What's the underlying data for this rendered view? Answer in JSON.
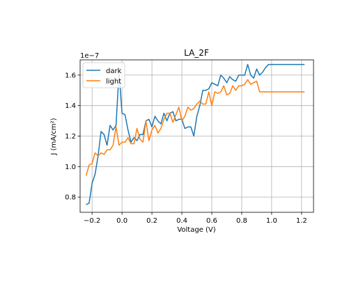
{
  "chart_data": {
    "type": "line",
    "title": "LA_2F",
    "xlabel": "Voltage (V)",
    "ylabel": "J (mA/cm²)",
    "y_offset_label": "1e−7",
    "xlim": [
      -0.28,
      1.28
    ],
    "ylim": [
      0.7,
      1.7
    ],
    "grid": true,
    "legend_position": "top-left",
    "x_ticks": [
      -0.2,
      0.0,
      0.2,
      0.4,
      0.6,
      0.8,
      1.0,
      1.2
    ],
    "x_tick_labels": [
      "−0.2",
      "0.0",
      "0.2",
      "0.4",
      "0.6",
      "0.8",
      "1.0",
      "1.2"
    ],
    "y_ticks": [
      0.8,
      1.0,
      1.2,
      1.4,
      1.6
    ],
    "y_tick_labels": [
      "0.8",
      "1.0",
      "1.2",
      "1.4",
      "1.6"
    ],
    "x": [
      -0.24,
      -0.22,
      -0.2,
      -0.18,
      -0.16,
      -0.14,
      -0.12,
      -0.1,
      -0.08,
      -0.06,
      -0.04,
      -0.02,
      0.0,
      0.02,
      0.04,
      0.06,
      0.08,
      0.1,
      0.12,
      0.14,
      0.16,
      0.18,
      0.2,
      0.22,
      0.24,
      0.26,
      0.28,
      0.3,
      0.32,
      0.34,
      0.36,
      0.38,
      0.4,
      0.42,
      0.44,
      0.46,
      0.48,
      0.5,
      0.52,
      0.54,
      0.56,
      0.58,
      0.6,
      0.62,
      0.64,
      0.66,
      0.68,
      0.7,
      0.72,
      0.74,
      0.76,
      0.78,
      0.8,
      0.82,
      0.84,
      0.86,
      0.88,
      0.9,
      0.92,
      0.94,
      0.96,
      0.98,
      1.0,
      1.02,
      1.04,
      1.06,
      1.08,
      1.1,
      1.12,
      1.14,
      1.16,
      1.18,
      1.2,
      1.22
    ],
    "series": [
      {
        "name": "dark",
        "color": "#1f77b4",
        "values": [
          0.75,
          0.76,
          0.89,
          0.95,
          1.07,
          1.23,
          1.21,
          1.14,
          1.27,
          1.24,
          1.27,
          1.62,
          1.35,
          1.34,
          1.24,
          1.16,
          1.19,
          1.17,
          1.21,
          1.21,
          1.3,
          1.31,
          1.26,
          1.33,
          1.3,
          1.28,
          1.35,
          1.3,
          1.35,
          1.36,
          1.3,
          1.31,
          1.31,
          1.25,
          1.26,
          1.26,
          1.2,
          1.33,
          1.4,
          1.5,
          1.5,
          1.51,
          1.55,
          1.54,
          1.53,
          1.6,
          1.58,
          1.55,
          1.59,
          1.57,
          1.56,
          1.6,
          1.6,
          1.6,
          1.67,
          1.6,
          1.58,
          1.64,
          1.6,
          1.62,
          1.65,
          1.67,
          1.67,
          1.67,
          1.67,
          1.67,
          1.67,
          1.67,
          1.67,
          1.67,
          1.67,
          1.67,
          1.67,
          1.67
        ]
      },
      {
        "name": "light",
        "color": "#ff7f0e",
        "values": [
          0.94,
          1.01,
          1.02,
          1.09,
          1.07,
          1.09,
          1.08,
          1.11,
          1.11,
          1.14,
          1.26,
          1.14,
          1.16,
          1.16,
          1.19,
          1.15,
          1.15,
          1.25,
          1.18,
          1.16,
          1.3,
          1.17,
          1.24,
          1.27,
          1.22,
          1.25,
          1.31,
          1.35,
          1.35,
          1.29,
          1.34,
          1.39,
          1.3,
          1.33,
          1.39,
          1.37,
          1.38,
          1.41,
          1.43,
          1.41,
          1.41,
          1.49,
          1.4,
          1.49,
          1.48,
          1.49,
          1.53,
          1.47,
          1.48,
          1.53,
          1.5,
          1.53,
          1.53,
          1.54,
          1.57,
          1.54,
          1.55,
          1.56,
          1.49,
          1.49,
          1.49,
          1.49,
          1.49,
          1.49,
          1.49,
          1.49,
          1.49,
          1.49,
          1.49,
          1.49,
          1.49,
          1.49,
          1.49,
          1.49
        ]
      }
    ]
  }
}
